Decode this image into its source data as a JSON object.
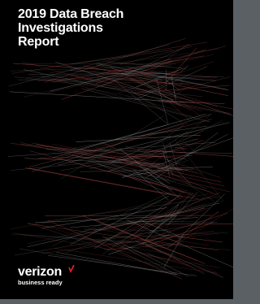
{
  "cover": {
    "title_lines": [
      "2019 Data Breach",
      "Investigations",
      "Report"
    ],
    "brand": "verizon",
    "tagline": "business ready"
  }
}
